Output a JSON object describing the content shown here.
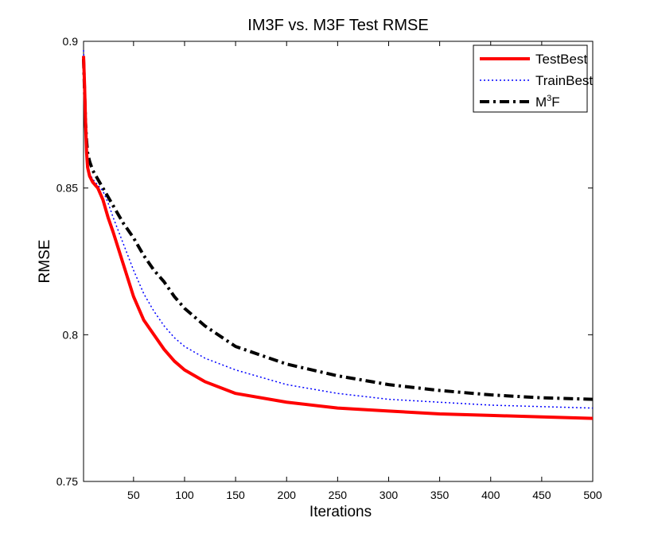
{
  "chart_data": {
    "type": "line",
    "title": "IM3F vs. M3F Test RMSE",
    "xlabel": "Iterations",
    "ylabel": "RMSE",
    "xlim": [
      1,
      500
    ],
    "ylim": [
      0.75,
      0.9
    ],
    "xticks": [
      50,
      100,
      150,
      200,
      250,
      300,
      350,
      400,
      450,
      500
    ],
    "xtick_labels": [
      "50",
      "100",
      "150",
      "200",
      "250",
      "300",
      "350",
      "400",
      "450",
      "500"
    ],
    "yticks": [
      0.75,
      0.8,
      0.85,
      0.9
    ],
    "ytick_labels": [
      "0.75",
      "0.8",
      "0.85",
      "0.9"
    ],
    "grid": false,
    "legend_position": "top-right",
    "series": [
      {
        "name": "TestBest",
        "legend_label": "TestBest",
        "color": "#ff0000",
        "style": "solid",
        "x": [
          1,
          2,
          3,
          4,
          5,
          7,
          10,
          15,
          20,
          25,
          30,
          40,
          50,
          60,
          70,
          80,
          90,
          100,
          120,
          150,
          200,
          250,
          300,
          350,
          400,
          450,
          500
        ],
        "y": [
          0.895,
          0.885,
          0.872,
          0.862,
          0.857,
          0.854,
          0.852,
          0.85,
          0.846,
          0.84,
          0.835,
          0.824,
          0.813,
          0.805,
          0.8,
          0.795,
          0.791,
          0.788,
          0.784,
          0.78,
          0.777,
          0.775,
          0.774,
          0.773,
          0.7725,
          0.772,
          0.7715
        ]
      },
      {
        "name": "TrainBest",
        "legend_label": "TrainBest",
        "color": "#0000ff",
        "style": "dotted",
        "x": [
          1,
          2,
          3,
          4,
          5,
          7,
          10,
          15,
          20,
          25,
          30,
          40,
          50,
          60,
          70,
          80,
          90,
          100,
          120,
          150,
          200,
          250,
          300,
          350,
          400,
          450,
          500
        ],
        "y": [
          0.897,
          0.886,
          0.873,
          0.863,
          0.858,
          0.855,
          0.853,
          0.851,
          0.849,
          0.845,
          0.84,
          0.831,
          0.822,
          0.814,
          0.808,
          0.803,
          0.799,
          0.796,
          0.792,
          0.788,
          0.783,
          0.78,
          0.778,
          0.777,
          0.776,
          0.7755,
          0.775
        ]
      },
      {
        "name": "M3F",
        "legend_label": "M",
        "legend_sup": "3",
        "legend_suffix": "F",
        "color": "#000000",
        "style": "dashdot",
        "x": [
          1,
          2,
          3,
          4,
          5,
          7,
          10,
          15,
          20,
          25,
          30,
          40,
          50,
          60,
          70,
          80,
          90,
          100,
          120,
          150,
          200,
          250,
          300,
          350,
          400,
          450,
          500
        ],
        "y": [
          0.894,
          0.883,
          0.872,
          0.866,
          0.862,
          0.859,
          0.856,
          0.853,
          0.85,
          0.847,
          0.844,
          0.838,
          0.833,
          0.827,
          0.822,
          0.818,
          0.813,
          0.809,
          0.803,
          0.796,
          0.79,
          0.786,
          0.783,
          0.781,
          0.7795,
          0.7785,
          0.778
        ]
      }
    ]
  }
}
